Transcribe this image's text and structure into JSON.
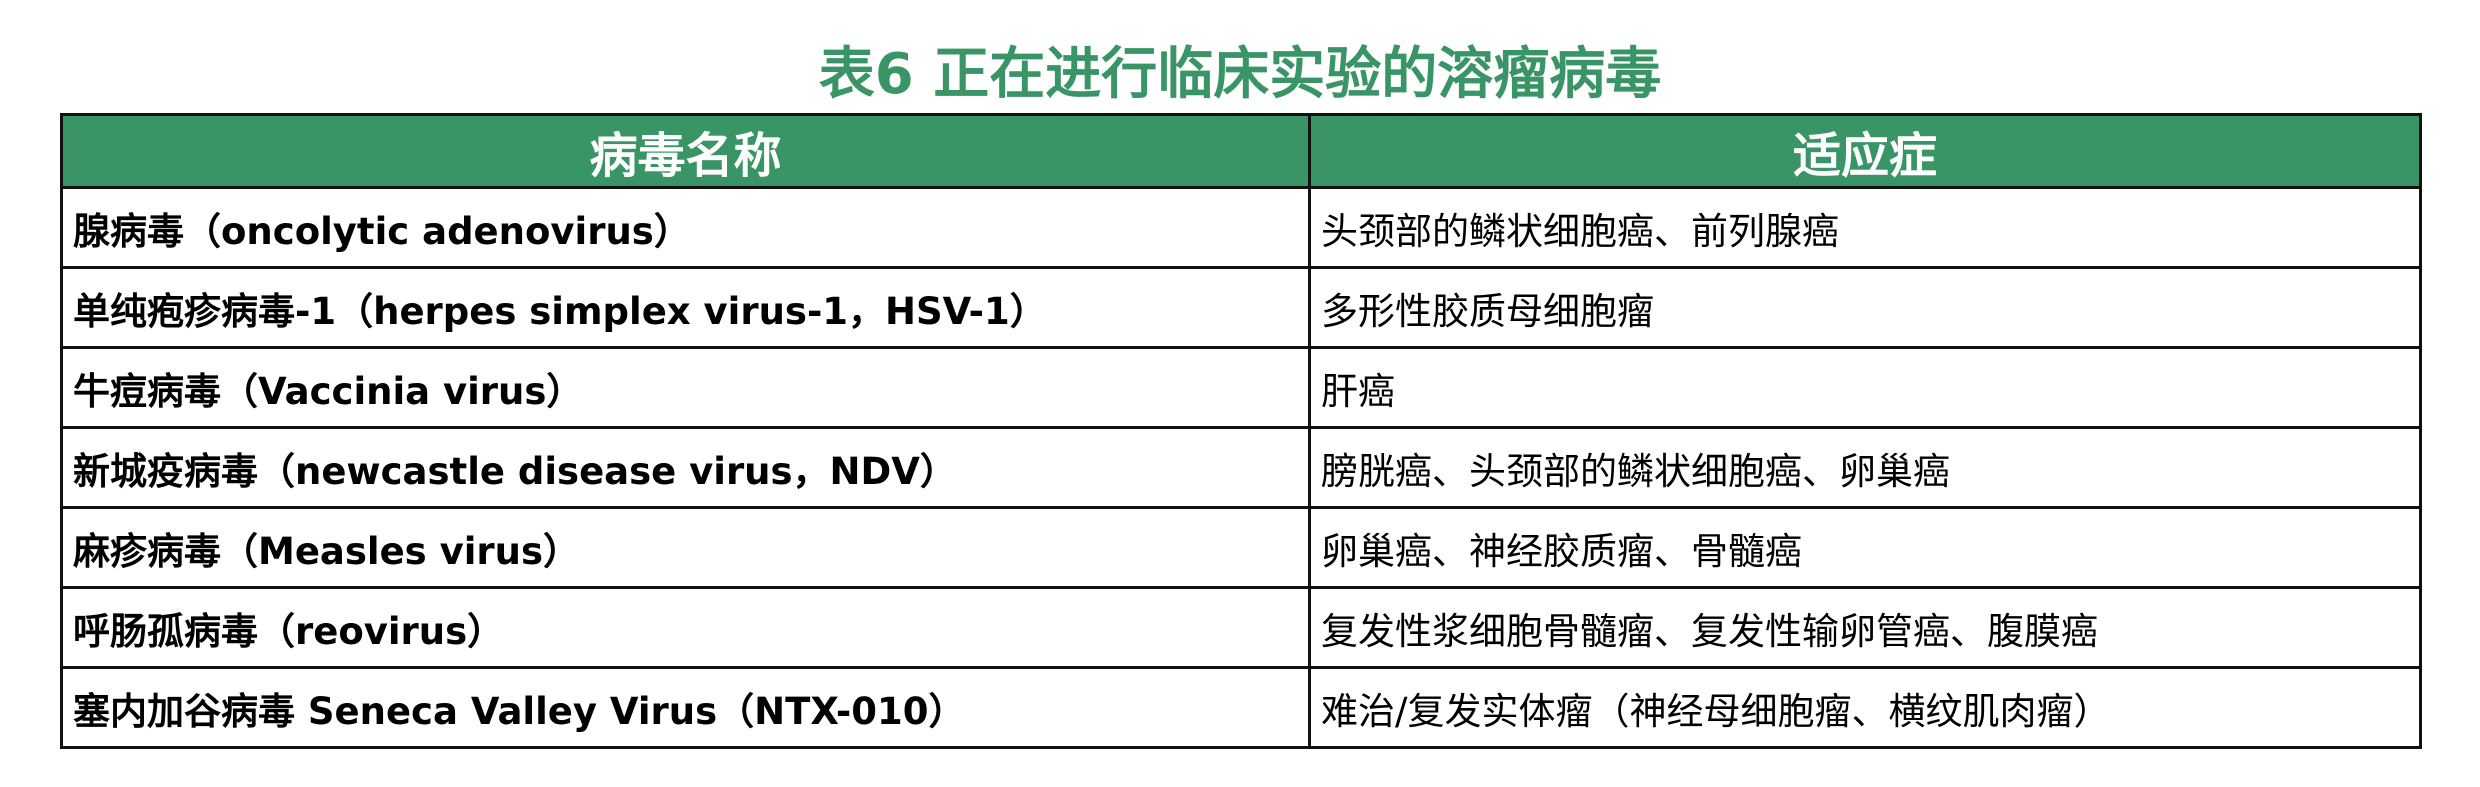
{
  "title": "表6 正在进行临床实验的溶瘤病毒",
  "table": {
    "headers": [
      "病毒名称",
      "适应症"
    ],
    "header_color": "#3a9566",
    "rows": [
      {
        "virus": "腺病毒（oncolytic adenovirus）",
        "indication": "头颈部的鳞状细胞癌、前列腺癌"
      },
      {
        "virus": "单纯疱疹病毒-1（herpes simplex virus-1，HSV-1）",
        "indication": "多形性胶质母细胞瘤"
      },
      {
        "virus": "牛痘病毒（Vaccinia virus）",
        "indication": "肝癌"
      },
      {
        "virus": "新城疫病毒（newcastle disease virus，NDV）",
        "indication": "膀胱癌、头颈部的鳞状细胞癌、卵巢癌"
      },
      {
        "virus": "麻疹病毒（Measles virus）",
        "indication": "卵巢癌、神经胶质瘤、骨髓癌"
      },
      {
        "virus": "呼肠孤病毒（reovirus）",
        "indication": "复发性浆细胞骨髓瘤、复发性输卵管癌、腹膜癌"
      },
      {
        "virus": "塞内加谷病毒 Seneca Valley Virus（NTX-010）",
        "indication": "难治/复发实体瘤（神经母细胞瘤、横纹肌肉瘤）"
      }
    ]
  }
}
